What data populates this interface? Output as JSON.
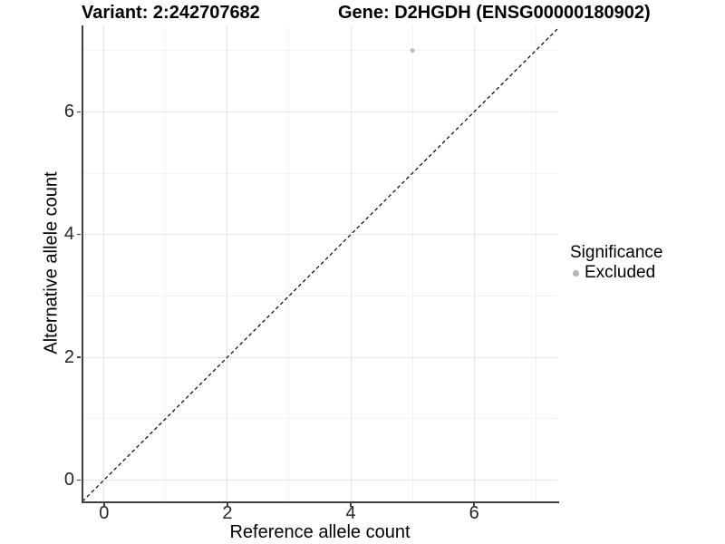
{
  "chart_data": {
    "type": "scatter",
    "titles": {
      "left": "Variant: 2:242707682",
      "right": "Gene: D2HGDH (ENSG00000180902)"
    },
    "xlabel": "Reference allele count",
    "ylabel": "Alternative allele count",
    "x_ticks": [
      0,
      2,
      4,
      6
    ],
    "y_ticks": [
      0,
      2,
      4,
      6
    ],
    "x_minor_gridlines": [
      1,
      3,
      5,
      7
    ],
    "y_minor_gridlines": [
      1,
      3,
      5,
      7
    ],
    "xlim": [
      -0.35,
      7.35
    ],
    "ylim": [
      -0.35,
      7.41
    ],
    "grid": {
      "major": true,
      "minor": true
    },
    "series": [
      {
        "name": "Excluded",
        "color": "#bdbdbd",
        "point_radius": 2.5,
        "points": [
          {
            "x": 5,
            "y": 7
          }
        ]
      }
    ],
    "reference_line": {
      "kind": "identity (y = x)",
      "style": "dashed",
      "color": "#000000"
    },
    "legend": {
      "title": "Significance",
      "position": "right-center",
      "entries": [
        {
          "label": "Excluded",
          "color": "#b5b5b5"
        }
      ]
    },
    "colors": {
      "axis_line": "#404040",
      "grid_major": "#e6e6e6",
      "grid_minor": "#f2f2f2",
      "tick_label": "#262626",
      "background": "#ffffff"
    }
  }
}
